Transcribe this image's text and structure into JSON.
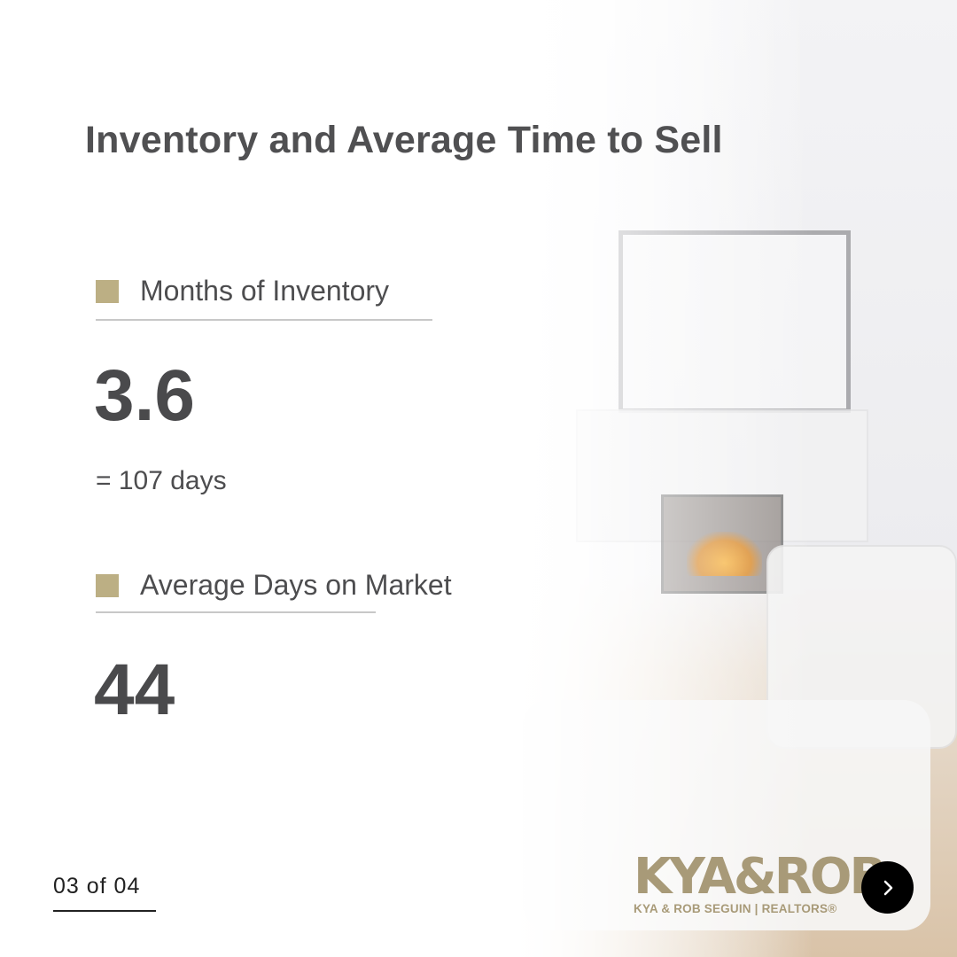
{
  "title": "Inventory and Average Time to Sell",
  "stats": [
    {
      "label": "Months of Inventory",
      "value": "3.6",
      "note": "= 107 days"
    },
    {
      "label": "Average Days on Market",
      "value": "44"
    }
  ],
  "pagination": {
    "text": "03 of 04"
  },
  "logo": {
    "main": "KYA&ROB",
    "tagline": "KYA & ROB SEGUIN | REALTORS®"
  },
  "next_icon": "chevron-right-icon",
  "colors": {
    "accent": "#bcaf84",
    "text": "#4d4d4f",
    "button": "#000000"
  }
}
